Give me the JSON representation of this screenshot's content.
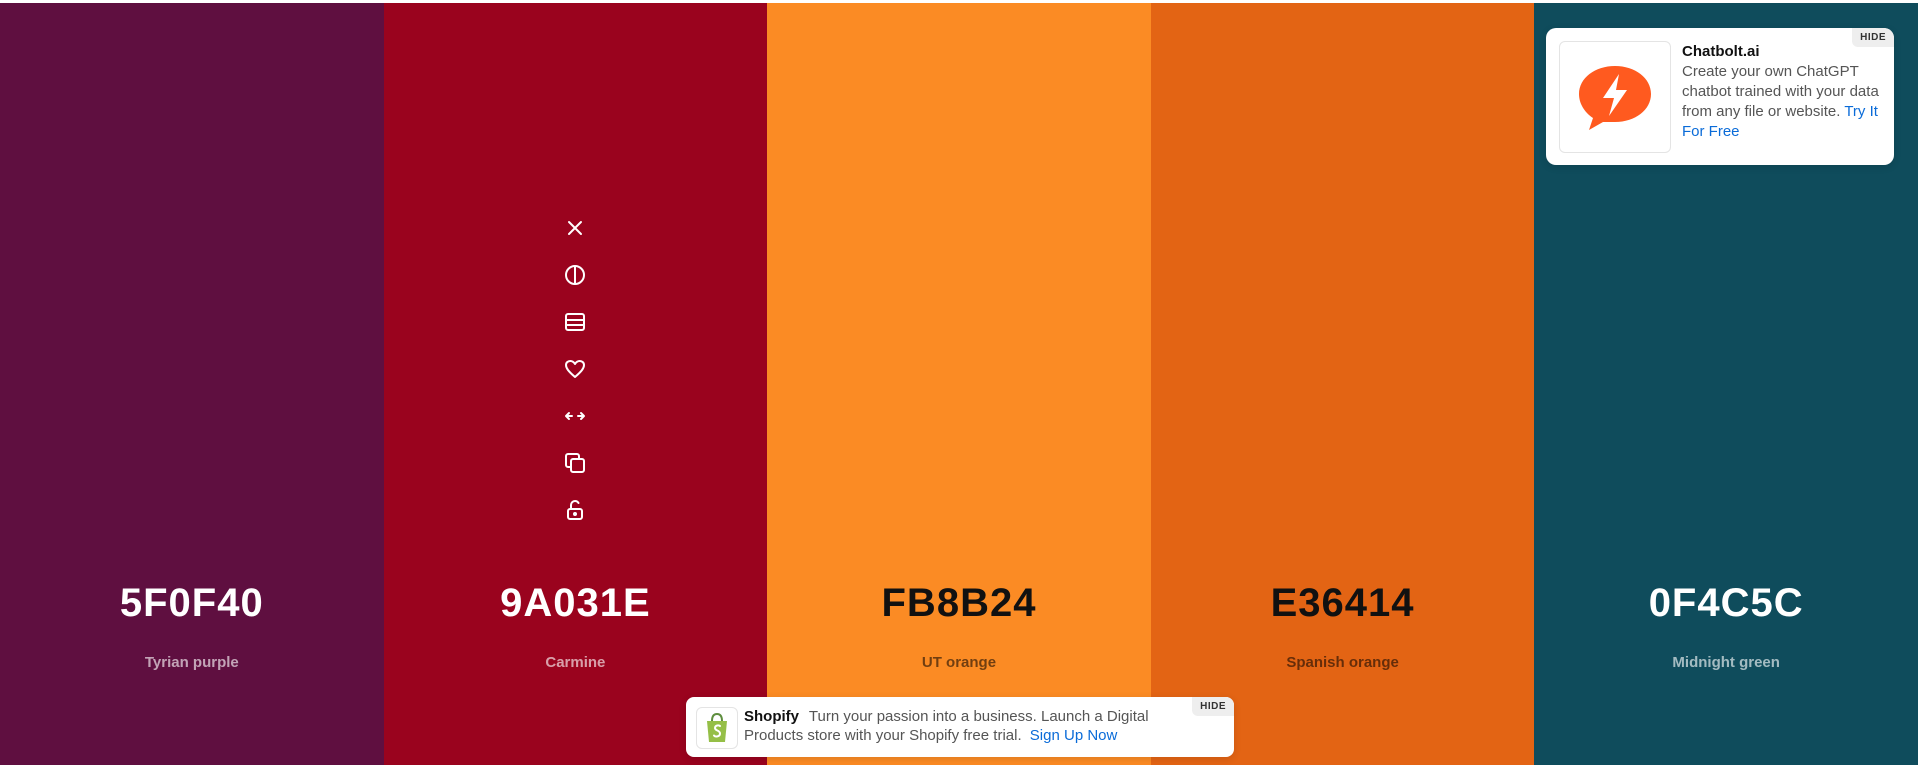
{
  "colors": [
    {
      "hex": "5F0F40",
      "name": "Tyrian purple",
      "bg": "#5F0F40",
      "theme": "light"
    },
    {
      "hex": "9A031E",
      "name": "Carmine",
      "bg": "#9A031E",
      "theme": "light"
    },
    {
      "hex": "FB8B24",
      "name": "UT orange",
      "bg": "#FB8B24",
      "theme": "dark"
    },
    {
      "hex": "E36414",
      "name": "Spanish orange",
      "bg": "#E36414",
      "theme": "dark"
    },
    {
      "hex": "0F4C5C",
      "name": "Midnight green",
      "bg": "#0F4C5C",
      "theme": "light"
    }
  ],
  "toolbar_icons": [
    "close-icon",
    "contrast-icon",
    "shades-icon",
    "heart-icon",
    "drag-icon",
    "copy-icon",
    "unlock-icon"
  ],
  "ad_top": {
    "title": "Chatbolt.ai",
    "body": "Create your own ChatGPT chatbot trained with your data from any file or website.",
    "link": "Try It For Free",
    "hide": "HIDE",
    "brand_color": "#FF5A1F"
  },
  "ad_bottom": {
    "title": "Shopify",
    "body": "Turn your passion into a business. Launch a Digital Products store with your Shopify free trial.",
    "link": "Sign Up Now",
    "hide": "HIDE",
    "brand_color": "#95BF47"
  }
}
